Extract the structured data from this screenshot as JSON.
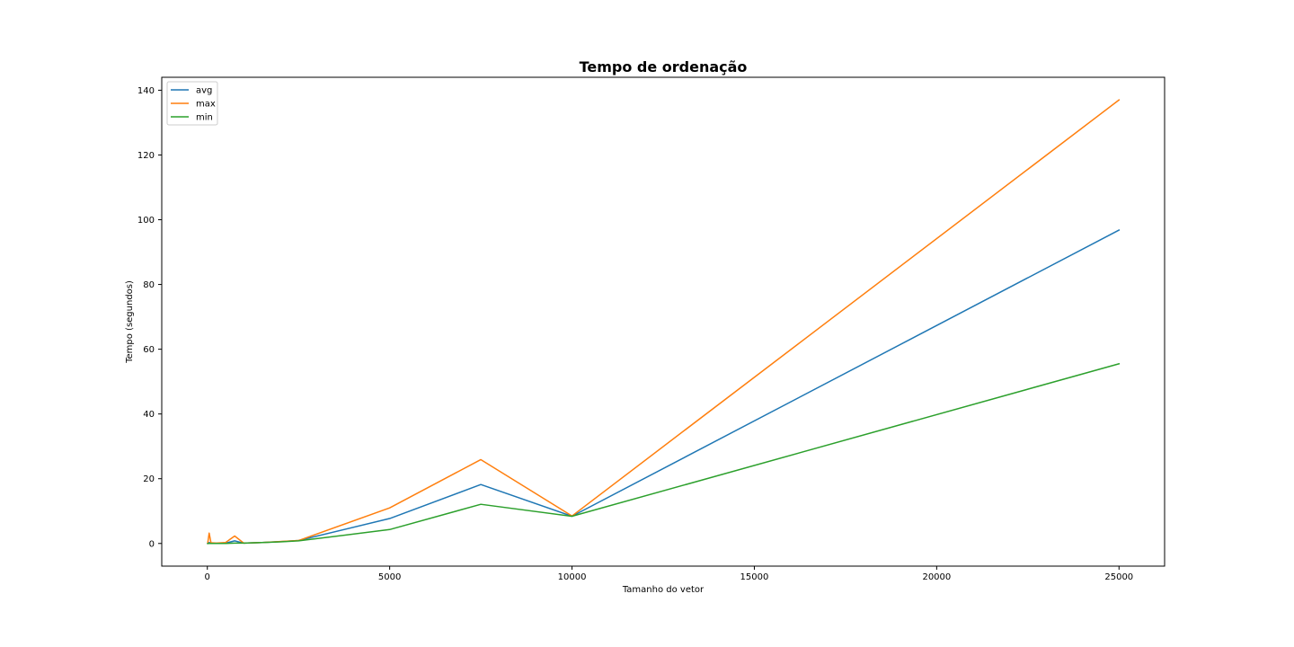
{
  "chart_data": {
    "type": "line",
    "title": "Tempo de ordenação",
    "xlabel": "Tamanho do vetor",
    "ylabel": "Tempo (segundos)",
    "xlim": [
      -1250,
      26250
    ],
    "ylim": [
      -7,
      144
    ],
    "xticks": [
      0,
      5000,
      10000,
      15000,
      20000,
      25000
    ],
    "yticks": [
      0,
      20,
      40,
      60,
      80,
      100,
      120,
      140
    ],
    "grid": false,
    "legend_position": "top-left",
    "x": [
      10,
      50,
      100,
      250,
      500,
      750,
      1000,
      1500,
      2000,
      2500,
      5000,
      7500,
      10000,
      25000
    ],
    "series": [
      {
        "name": "avg",
        "color": "#1f77b4",
        "values": [
          0.0,
          0.3,
          0.1,
          0.05,
          0.1,
          0.8,
          0.1,
          0.3,
          0.55,
          0.9,
          7.7,
          18.2,
          8.4,
          96.8
        ]
      },
      {
        "name": "max",
        "color": "#ff7f0e",
        "values": [
          0.0,
          3.2,
          0.2,
          0.1,
          0.3,
          2.3,
          0.1,
          0.3,
          0.6,
          0.9,
          11.0,
          25.9,
          8.5,
          137.0
        ]
      },
      {
        "name": "min",
        "color": "#2ca02c",
        "values": [
          0.0,
          0.0,
          0.0,
          0.0,
          0.0,
          0.1,
          0.1,
          0.3,
          0.5,
          0.8,
          4.3,
          12.1,
          8.4,
          55.5
        ]
      }
    ]
  }
}
